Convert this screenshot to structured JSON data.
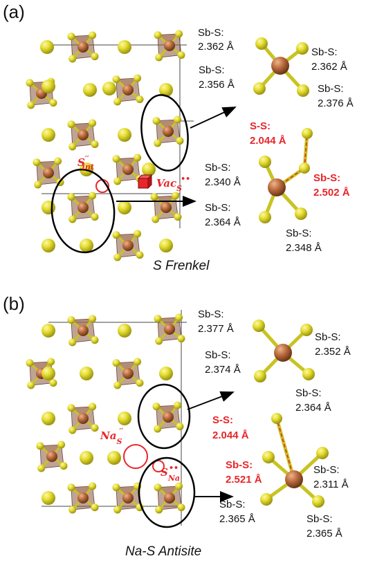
{
  "colors": {
    "sulfur": "#e3dc2e",
    "antimony": "#b86a3c",
    "octahedron": "#8a5a40",
    "defect_red": "#e8262a",
    "cell_line": "#444444"
  },
  "panel_a": {
    "label": "(a)",
    "title": "S Frenkel",
    "defect_interstitial": "S′′int",
    "defect_vacancy": "VacS••",
    "left_labels": [
      {
        "name": "Sb-S:",
        "value": "2.362 Å"
      },
      {
        "name": "Sb-S:",
        "value": "2.356 Å"
      }
    ],
    "pristine_labels": [
      {
        "name": "Sb-S:",
        "value": "2.362 Å"
      },
      {
        "name": "Sb-S:",
        "value": "2.376 Å"
      }
    ],
    "defect_labels": {
      "ss": {
        "name": "S-S:",
        "value": "2.044 Å"
      },
      "sbs_red": {
        "name": "Sb-S:",
        "value": "2.502 Å"
      },
      "sbs1": {
        "name": "Sb-S:",
        "value": "2.340 Å"
      },
      "sbs2": {
        "name": "Sb-S:",
        "value": "2.364 Å"
      },
      "sbs3": {
        "name": "Sb-S:",
        "value": "2.348 Å"
      }
    }
  },
  "panel_b": {
    "label": "(b)",
    "title": "Na-S Antisite",
    "defect_na_on_s": "NaS′′",
    "defect_s_on_na": "SNa••",
    "left_labels": [
      {
        "name": "Sb-S:",
        "value": "2.377 Å"
      },
      {
        "name": "Sb-S:",
        "value": "2.374 Å"
      }
    ],
    "pristine_labels": [
      {
        "name": "Sb-S:",
        "value": "2.352 Å"
      },
      {
        "name": "Sb-S:",
        "value": "2.364 Å"
      }
    ],
    "defect_labels": {
      "ss": {
        "name": "S-S:",
        "value": "2.044 Å"
      },
      "sbs_red": {
        "name": "Sb-S:",
        "value": "2.521 Å"
      },
      "sbs1": {
        "name": "Sb-S:",
        "value": "2.311 Å"
      },
      "sbs2": {
        "name": "Sb-S:",
        "value": "2.365 Å"
      },
      "sbs3": {
        "name": "Sb-S:",
        "value": "2.365 Å"
      }
    }
  }
}
